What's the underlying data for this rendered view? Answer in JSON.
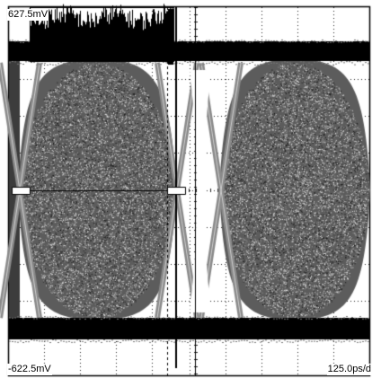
{
  "scope": {
    "top_label": "627.5mV",
    "bottom_label": "-622.5mV",
    "timebase_label": "125.0ps/d"
  }
}
